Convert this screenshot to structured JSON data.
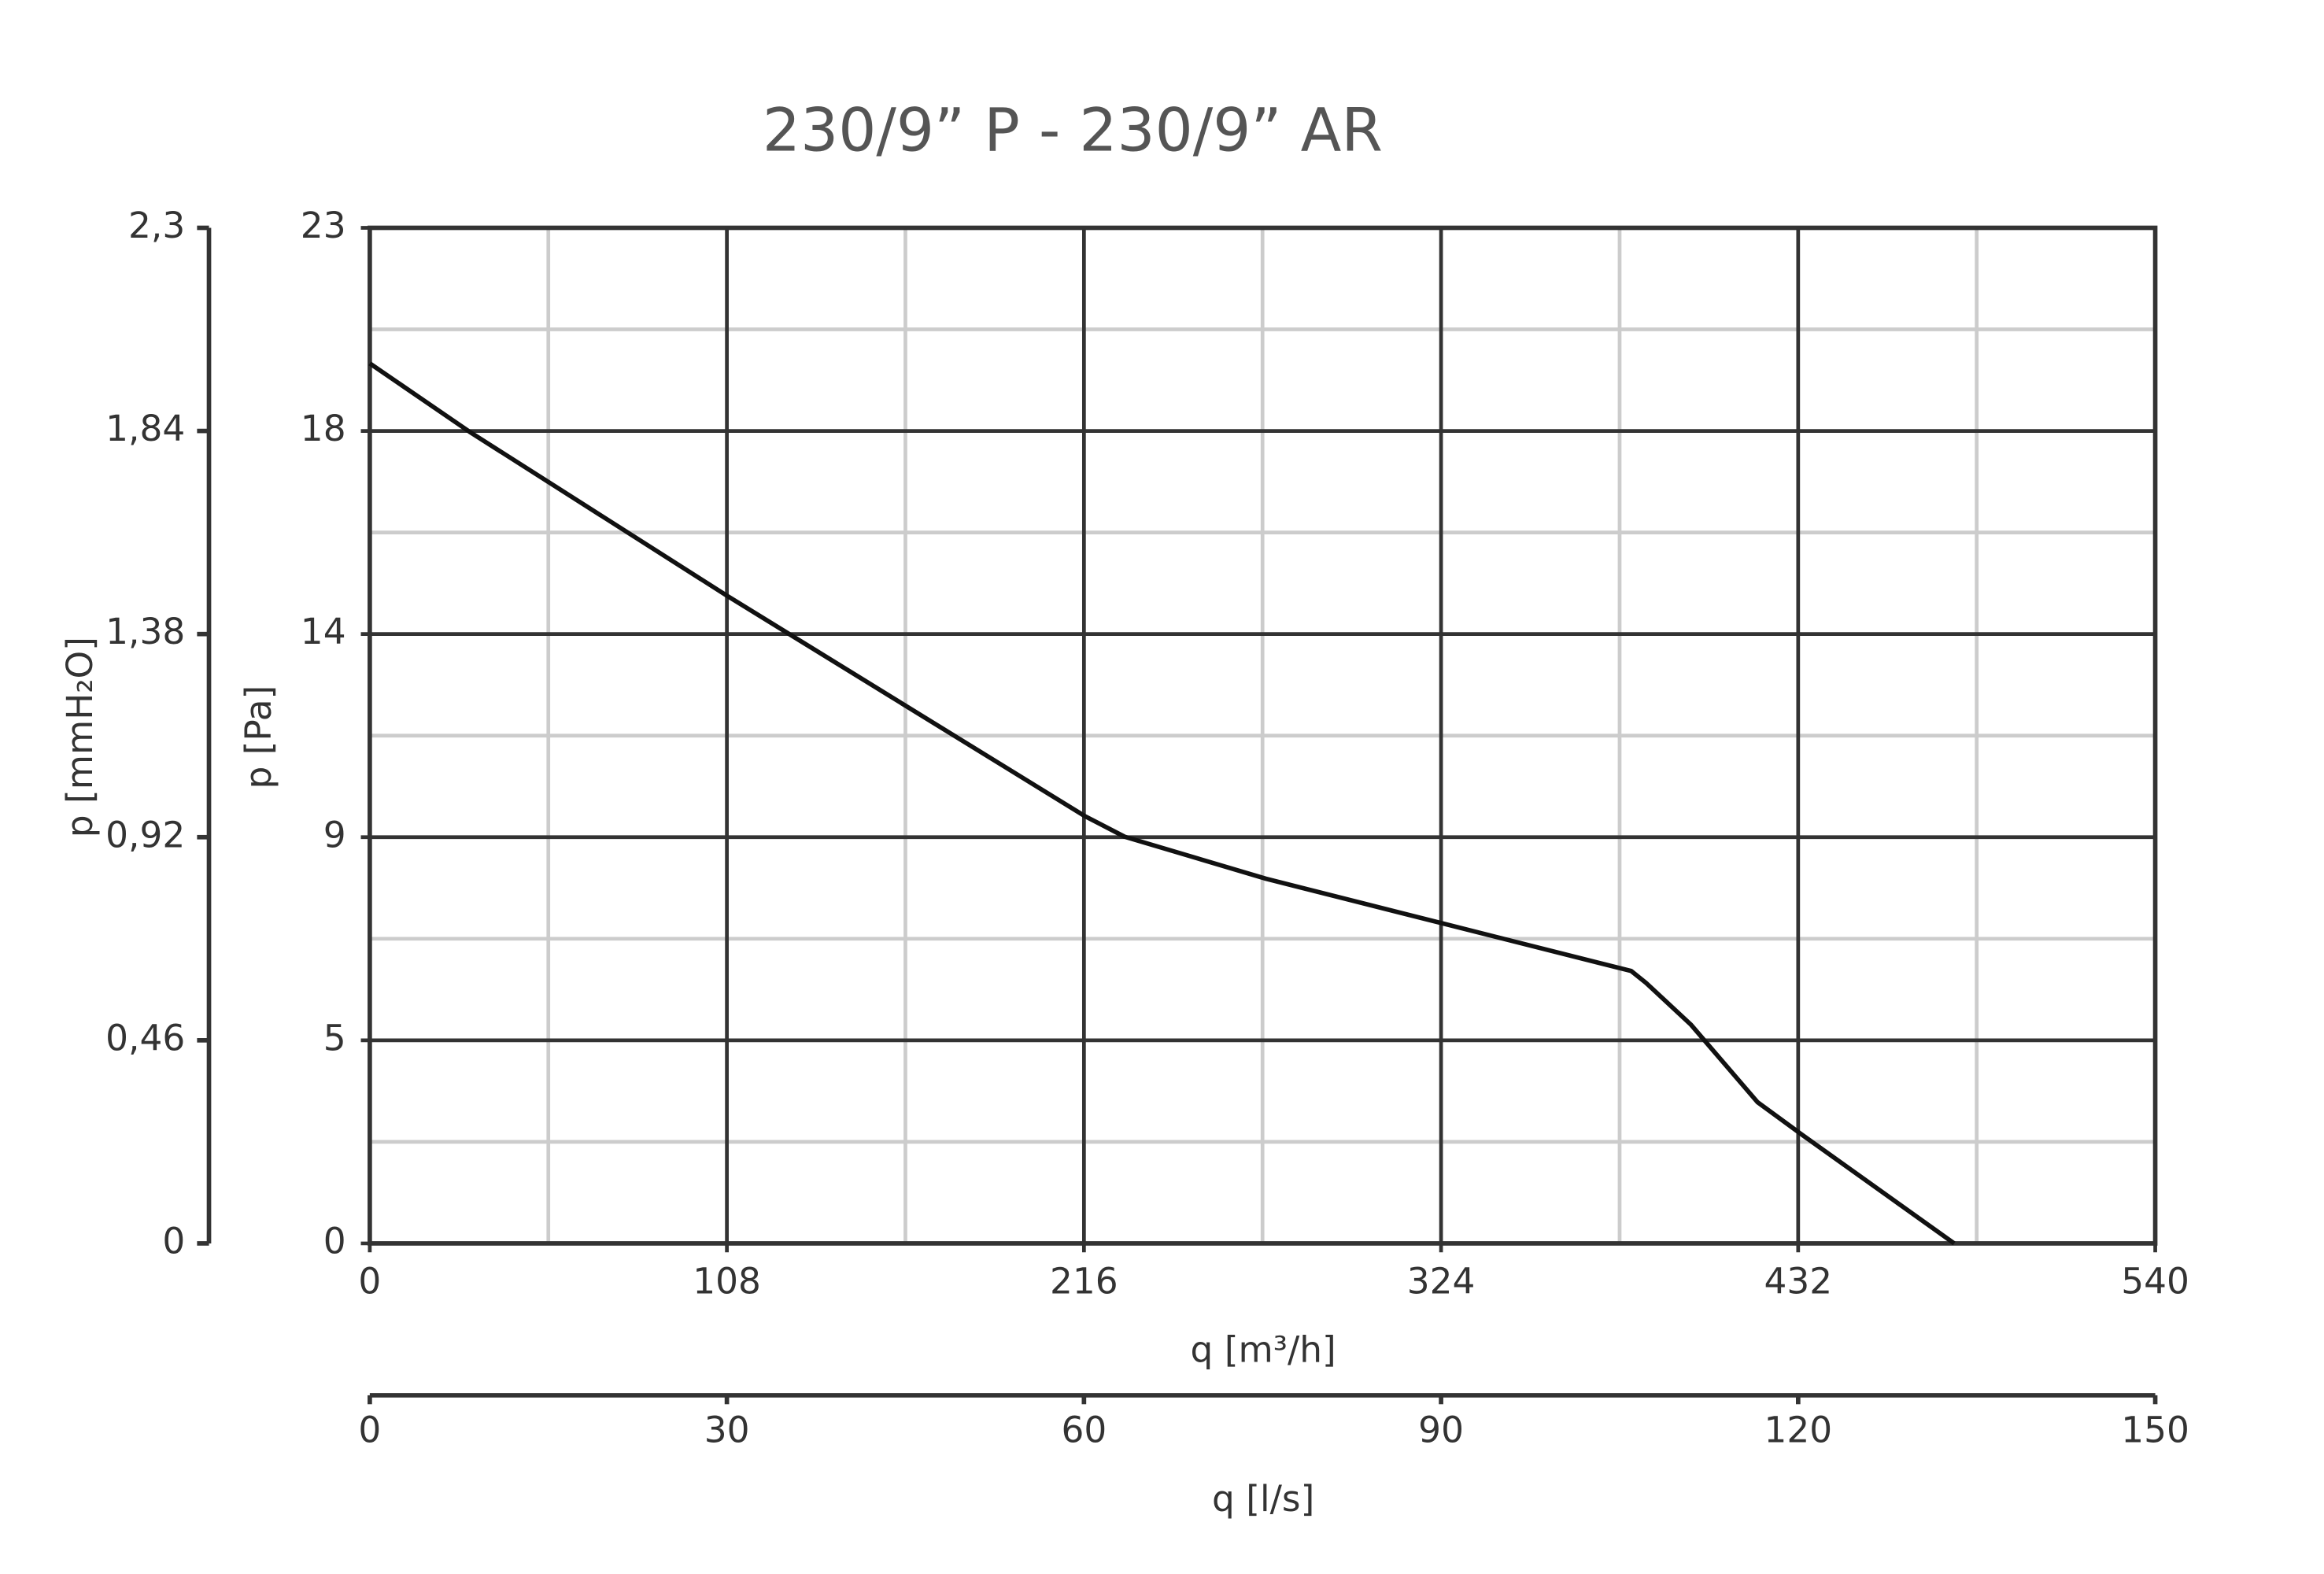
{
  "chart_data": {
    "type": "line",
    "title": "230/9” P - 230/9” AR",
    "xlabel": "q [m³/h]",
    "ylabel": "p [Pa]",
    "y2label": "p [mmH₂O]",
    "x2label": "q [l/s]",
    "x": [
      0,
      30.2,
      108,
      216.2,
      228.3,
      271,
      324.3,
      381.5,
      386,
      399.5,
      419.7,
      433.2,
      479.2
    ],
    "series": [
      {
        "color": "#111111",
        "values": [
          19.93,
          18.38,
          14.67,
          9.68,
          9.21,
          8.26,
          7.25,
          6.17,
          5.9,
          4.96,
          3.2,
          2.46,
          0
        ]
      }
    ],
    "xlim": [
      0,
      540
    ],
    "xticks": [
      0,
      108,
      216,
      324,
      432,
      540
    ],
    "ylim": [
      0,
      23
    ],
    "yticks": [
      0,
      {
        "value": 4.6,
        "label": "5"
      },
      {
        "value": 9.2,
        "label": "9"
      },
      {
        "value": 13.8,
        "label": "14"
      },
      {
        "value": 18.4,
        "label": "18"
      },
      23
    ],
    "y2lim": [
      0,
      2.3
    ],
    "y2ticks": [
      0,
      {
        "value": 0.46,
        "label": "0,46"
      },
      {
        "value": 0.92,
        "label": "0,92"
      },
      {
        "value": 1.38,
        "label": "1,38"
      },
      {
        "value": 1.84,
        "label": "1,84"
      },
      {
        "value": 2.3,
        "label": "2,3"
      }
    ],
    "x2lim": [
      0,
      150
    ],
    "x2ticks": [
      0,
      30,
      60,
      90,
      120,
      150
    ],
    "grid": true,
    "minor_grid": true
  }
}
